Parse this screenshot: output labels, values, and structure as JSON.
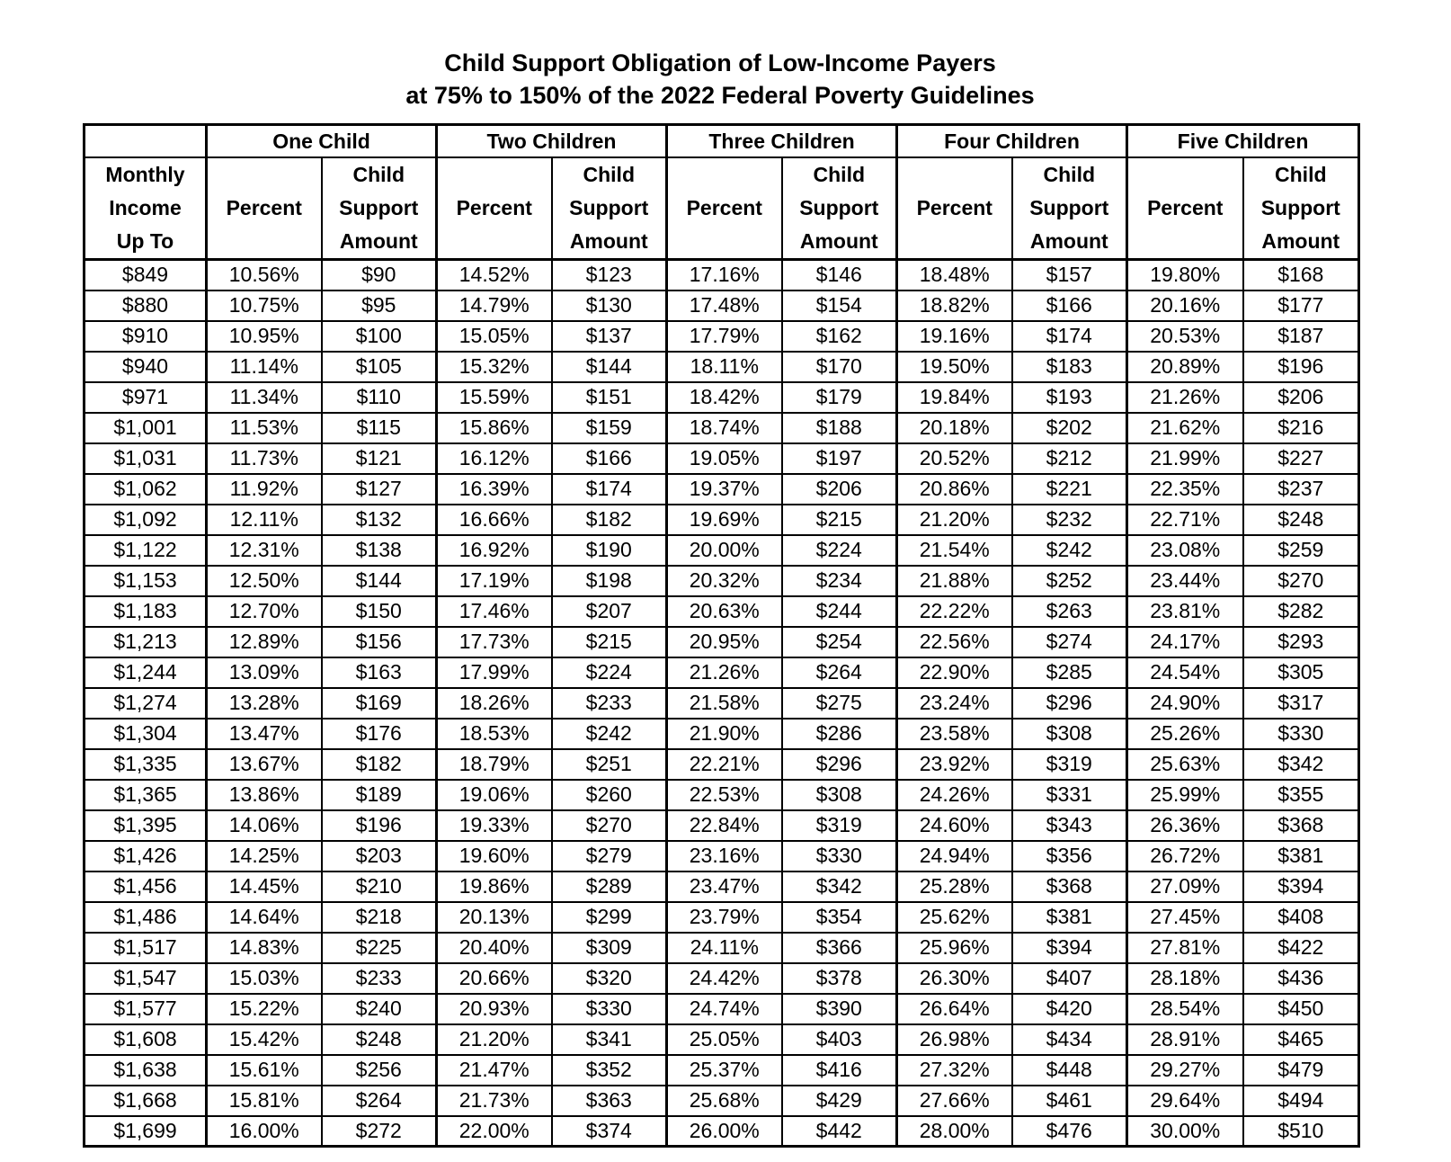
{
  "page_title": {
    "line1": "Child Support Obligation of Low-Income Payers",
    "line2": "at 75% to 150% of the 2022 Federal Poverty Guidelines"
  },
  "table": {
    "groups": [
      "One Child",
      "Two Children",
      "Three Children",
      "Four Children",
      "Five Children"
    ],
    "header": {
      "income_lines": [
        "Monthly",
        "Income",
        "Up To"
      ],
      "percent_label": "Percent",
      "amount_lines": [
        "Child",
        "Support",
        "Amount"
      ]
    },
    "rows": [
      {
        "income": "$849",
        "cells": [
          "10.56%",
          "$90",
          "14.52%",
          "$123",
          "17.16%",
          "$146",
          "18.48%",
          "$157",
          "19.80%",
          "$168"
        ]
      },
      {
        "income": "$880",
        "cells": [
          "10.75%",
          "$95",
          "14.79%",
          "$130",
          "17.48%",
          "$154",
          "18.82%",
          "$166",
          "20.16%",
          "$177"
        ]
      },
      {
        "income": "$910",
        "cells": [
          "10.95%",
          "$100",
          "15.05%",
          "$137",
          "17.79%",
          "$162",
          "19.16%",
          "$174",
          "20.53%",
          "$187"
        ]
      },
      {
        "income": "$940",
        "cells": [
          "11.14%",
          "$105",
          "15.32%",
          "$144",
          "18.11%",
          "$170",
          "19.50%",
          "$183",
          "20.89%",
          "$196"
        ]
      },
      {
        "income": "$971",
        "cells": [
          "11.34%",
          "$110",
          "15.59%",
          "$151",
          "18.42%",
          "$179",
          "19.84%",
          "$193",
          "21.26%",
          "$206"
        ]
      },
      {
        "income": "$1,001",
        "cells": [
          "11.53%",
          "$115",
          "15.86%",
          "$159",
          "18.74%",
          "$188",
          "20.18%",
          "$202",
          "21.62%",
          "$216"
        ]
      },
      {
        "income": "$1,031",
        "cells": [
          "11.73%",
          "$121",
          "16.12%",
          "$166",
          "19.05%",
          "$197",
          "20.52%",
          "$212",
          "21.99%",
          "$227"
        ]
      },
      {
        "income": "$1,062",
        "cells": [
          "11.92%",
          "$127",
          "16.39%",
          "$174",
          "19.37%",
          "$206",
          "20.86%",
          "$221",
          "22.35%",
          "$237"
        ]
      },
      {
        "income": "$1,092",
        "cells": [
          "12.11%",
          "$132",
          "16.66%",
          "$182",
          "19.69%",
          "$215",
          "21.20%",
          "$232",
          "22.71%",
          "$248"
        ]
      },
      {
        "income": "$1,122",
        "cells": [
          "12.31%",
          "$138",
          "16.92%",
          "$190",
          "20.00%",
          "$224",
          "21.54%",
          "$242",
          "23.08%",
          "$259"
        ]
      },
      {
        "income": "$1,153",
        "cells": [
          "12.50%",
          "$144",
          "17.19%",
          "$198",
          "20.32%",
          "$234",
          "21.88%",
          "$252",
          "23.44%",
          "$270"
        ]
      },
      {
        "income": "$1,183",
        "cells": [
          "12.70%",
          "$150",
          "17.46%",
          "$207",
          "20.63%",
          "$244",
          "22.22%",
          "$263",
          "23.81%",
          "$282"
        ]
      },
      {
        "income": "$1,213",
        "cells": [
          "12.89%",
          "$156",
          "17.73%",
          "$215",
          "20.95%",
          "$254",
          "22.56%",
          "$274",
          "24.17%",
          "$293"
        ]
      },
      {
        "income": "$1,244",
        "cells": [
          "13.09%",
          "$163",
          "17.99%",
          "$224",
          "21.26%",
          "$264",
          "22.90%",
          "$285",
          "24.54%",
          "$305"
        ]
      },
      {
        "income": "$1,274",
        "cells": [
          "13.28%",
          "$169",
          "18.26%",
          "$233",
          "21.58%",
          "$275",
          "23.24%",
          "$296",
          "24.90%",
          "$317"
        ]
      },
      {
        "income": "$1,304",
        "cells": [
          "13.47%",
          "$176",
          "18.53%",
          "$242",
          "21.90%",
          "$286",
          "23.58%",
          "$308",
          "25.26%",
          "$330"
        ]
      },
      {
        "income": "$1,335",
        "cells": [
          "13.67%",
          "$182",
          "18.79%",
          "$251",
          "22.21%",
          "$296",
          "23.92%",
          "$319",
          "25.63%",
          "$342"
        ]
      },
      {
        "income": "$1,365",
        "cells": [
          "13.86%",
          "$189",
          "19.06%",
          "$260",
          "22.53%",
          "$308",
          "24.26%",
          "$331",
          "25.99%",
          "$355"
        ]
      },
      {
        "income": "$1,395",
        "cells": [
          "14.06%",
          "$196",
          "19.33%",
          "$270",
          "22.84%",
          "$319",
          "24.60%",
          "$343",
          "26.36%",
          "$368"
        ]
      },
      {
        "income": "$1,426",
        "cells": [
          "14.25%",
          "$203",
          "19.60%",
          "$279",
          "23.16%",
          "$330",
          "24.94%",
          "$356",
          "26.72%",
          "$381"
        ]
      },
      {
        "income": "$1,456",
        "cells": [
          "14.45%",
          "$210",
          "19.86%",
          "$289",
          "23.47%",
          "$342",
          "25.28%",
          "$368",
          "27.09%",
          "$394"
        ]
      },
      {
        "income": "$1,486",
        "cells": [
          "14.64%",
          "$218",
          "20.13%",
          "$299",
          "23.79%",
          "$354",
          "25.62%",
          "$381",
          "27.45%",
          "$408"
        ]
      },
      {
        "income": "$1,517",
        "cells": [
          "14.83%",
          "$225",
          "20.40%",
          "$309",
          "24.11%",
          "$366",
          "25.96%",
          "$394",
          "27.81%",
          "$422"
        ]
      },
      {
        "income": "$1,547",
        "cells": [
          "15.03%",
          "$233",
          "20.66%",
          "$320",
          "24.42%",
          "$378",
          "26.30%",
          "$407",
          "28.18%",
          "$436"
        ]
      },
      {
        "income": "$1,577",
        "cells": [
          "15.22%",
          "$240",
          "20.93%",
          "$330",
          "24.74%",
          "$390",
          "26.64%",
          "$420",
          "28.54%",
          "$450"
        ]
      },
      {
        "income": "$1,608",
        "cells": [
          "15.42%",
          "$248",
          "21.20%",
          "$341",
          "25.05%",
          "$403",
          "26.98%",
          "$434",
          "28.91%",
          "$465"
        ]
      },
      {
        "income": "$1,638",
        "cells": [
          "15.61%",
          "$256",
          "21.47%",
          "$352",
          "25.37%",
          "$416",
          "27.32%",
          "$448",
          "29.27%",
          "$479"
        ]
      },
      {
        "income": "$1,668",
        "cells": [
          "15.81%",
          "$264",
          "21.73%",
          "$363",
          "25.68%",
          "$429",
          "27.66%",
          "$461",
          "29.64%",
          "$494"
        ]
      },
      {
        "income": "$1,699",
        "cells": [
          "16.00%",
          "$272",
          "22.00%",
          "$374",
          "26.00%",
          "$442",
          "28.00%",
          "$476",
          "30.00%",
          "$510"
        ]
      }
    ]
  }
}
